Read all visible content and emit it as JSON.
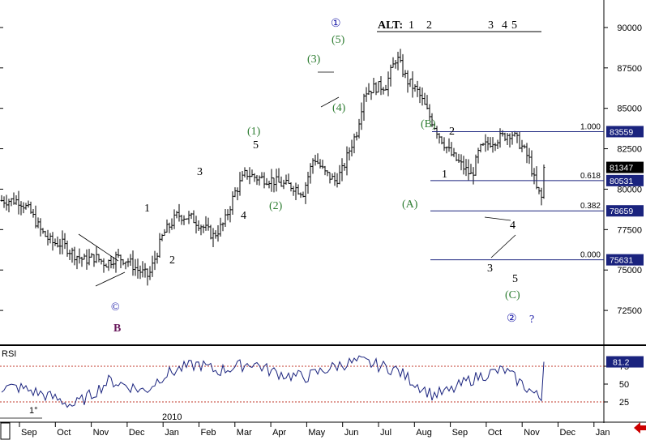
{
  "chart_data": [
    {
      "type": "line",
      "panel": "price",
      "title": "",
      "xlabel": "",
      "ylabel": "",
      "months": [
        "Sep",
        "Oct",
        "Nov",
        "Dec",
        "Jan",
        "Feb",
        "Mar",
        "Apr",
        "May",
        "Jun",
        "Jul",
        "Aug",
        "Sep",
        "Oct",
        "Nov",
        "Dec",
        "Jan"
      ],
      "year_label": "2010",
      "y_ticks": [
        "90000",
        "87500",
        "85000",
        "82500",
        "80000",
        "77500",
        "75000",
        "72500"
      ],
      "ylim": [
        70400,
        91700
      ],
      "grid": false,
      "legend": "none",
      "alt_header": {
        "label": "ALT:",
        "marks": [
          "1",
          "2",
          "3",
          "4",
          "5"
        ]
      },
      "badges": [
        {
          "label": "83559",
          "value": 83559,
          "color": "#1a237e"
        },
        {
          "label": "81347",
          "value": 81347,
          "color": "#000000"
        },
        {
          "label": "80531",
          "value": 80531,
          "color": "#1a237e"
        },
        {
          "label": "78659",
          "value": 78659,
          "color": "#1a237e"
        },
        {
          "label": "75631",
          "value": 75631,
          "color": "#1a237e"
        }
      ],
      "fibonacci": [
        {
          "ratio": "1.000",
          "value": 83559
        },
        {
          "ratio": "0.618",
          "value": 80531
        },
        {
          "ratio": "0.382",
          "value": 78659
        },
        {
          "ratio": "0.000",
          "value": 75631
        }
      ],
      "wave_labels": {
        "black": [
          "1",
          "2",
          "3",
          "4",
          "5",
          "1",
          "2",
          "3",
          "4",
          "5"
        ],
        "green": [
          "(1)",
          "(2)",
          "(3)",
          "(4)",
          "(5)",
          "(A)",
          "(B)",
          "(C)"
        ],
        "blue": [
          "①",
          "②",
          "?"
        ],
        "circle_c": "©",
        "purple": "B"
      },
      "series_path": [
        [
          0.0,
          79300
        ],
        [
          0.3,
          78600
        ],
        [
          0.6,
          77400
        ],
        [
          0.9,
          76700
        ],
        [
          1.2,
          76600
        ],
        [
          1.5,
          76000
        ],
        [
          1.8,
          75600
        ],
        [
          2.1,
          75800
        ],
        [
          2.4,
          75400
        ],
        [
          2.7,
          75800
        ],
        [
          3.0,
          75600
        ],
        [
          3.3,
          75000
        ],
        [
          3.6,
          74600
        ],
        [
          4.0,
          77200
        ],
        [
          4.4,
          78400
        ],
        [
          4.8,
          78200
        ],
        [
          5.1,
          77700
        ],
        [
          5.4,
          77100
        ],
        [
          5.7,
          77900
        ],
        [
          6.0,
          79800
        ],
        [
          6.3,
          81000
        ],
        [
          6.6,
          80700
        ],
        [
          7.0,
          80600
        ],
        [
          7.3,
          80300
        ],
        [
          7.6,
          80200
        ],
        [
          7.9,
          79800
        ],
        [
          8.2,
          82000
        ],
        [
          8.5,
          81000
        ],
        [
          8.8,
          80500
        ],
        [
          9.0,
          81200
        ],
        [
          9.2,
          82500
        ],
        [
          9.4,
          83600
        ],
        [
          9.6,
          86000
        ],
        [
          9.9,
          86300
        ],
        [
          10.2,
          86400
        ],
        [
          10.5,
          88200
        ],
        [
          10.8,
          86700
        ],
        [
          11.1,
          86000
        ],
        [
          11.4,
          84600
        ],
        [
          11.7,
          83300
        ],
        [
          12.0,
          82200
        ],
        [
          12.3,
          81500
        ],
        [
          12.6,
          80800
        ],
        [
          12.8,
          82400
        ],
        [
          13.1,
          82900
        ],
        [
          13.4,
          83200
        ],
        [
          13.7,
          83500
        ],
        [
          14.0,
          82600
        ],
        [
          14.2,
          81800
        ],
        [
          14.4,
          80000
        ],
        [
          14.7,
          78800
        ],
        [
          15.0,
          77000
        ],
        [
          15.2,
          76200
        ],
        [
          15.5,
          76900
        ],
        [
          15.8,
          77700
        ],
        [
          16.1,
          76700
        ],
        [
          16.4,
          76300
        ],
        [
          16.7,
          76400
        ],
        [
          17.0,
          77200
        ],
        [
          17.3,
          78000
        ],
        [
          17.6,
          79200
        ],
        [
          17.9,
          79800
        ],
        [
          18.2,
          80800
        ],
        [
          18.5,
          81347
        ]
      ],
      "volatility": 650
    },
    {
      "type": "line",
      "panel": "rsi",
      "label": "RSI",
      "value_badge": "81.2",
      "y_ticks": [
        "75",
        "50",
        "25"
      ],
      "ylim": [
        0,
        100
      ],
      "reference_lines": [
        25,
        75
      ],
      "small_label": "1°",
      "series_path": [
        [
          0.0,
          45
        ],
        [
          0.5,
          38
        ],
        [
          1.0,
          30
        ],
        [
          1.5,
          20
        ],
        [
          2.0,
          35
        ],
        [
          2.5,
          55
        ],
        [
          3.0,
          48
        ],
        [
          3.5,
          40
        ],
        [
          4.0,
          62
        ],
        [
          4.5,
          72
        ],
        [
          5.0,
          78
        ],
        [
          5.5,
          68
        ],
        [
          6.0,
          74
        ],
        [
          6.5,
          80
        ],
        [
          7.0,
          68
        ],
        [
          7.5,
          62
        ],
        [
          8.0,
          60
        ],
        [
          8.5,
          70
        ],
        [
          9.0,
          78
        ],
        [
          9.5,
          82
        ],
        [
          10.0,
          76
        ],
        [
          10.5,
          70
        ],
        [
          11.0,
          52
        ],
        [
          11.5,
          35
        ],
        [
          12.0,
          40
        ],
        [
          12.5,
          55
        ],
        [
          13.0,
          64
        ],
        [
          13.5,
          70
        ],
        [
          14.0,
          50
        ],
        [
          14.5,
          30
        ],
        [
          15.0,
          20
        ],
        [
          15.5,
          24
        ],
        [
          16.0,
          35
        ],
        [
          16.5,
          50
        ],
        [
          17.0,
          46
        ],
        [
          17.5,
          62
        ],
        [
          18.0,
          74
        ],
        [
          18.5,
          81.2
        ]
      ],
      "volatility": 9
    }
  ],
  "colors": {
    "price_bar": "#000000",
    "fib_line": "#1a237e",
    "rsi_line": "#1a237e",
    "rsi_ref": "#c0392b",
    "green_wave": "#2e7d32",
    "blue_wave": "#1a1aa8",
    "purple": "#6a1b5e",
    "nav_arrow": "#cc0000"
  },
  "nav_arrow_icon": "arrow-left-icon"
}
